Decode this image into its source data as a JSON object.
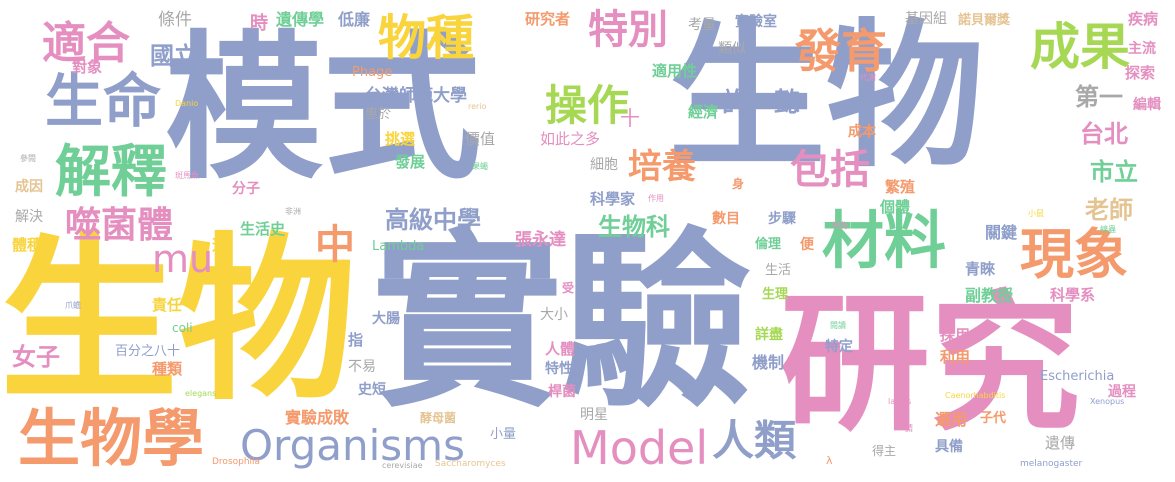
{
  "colors": {
    "blue": "#8f9fca",
    "pink": "#e48fc0",
    "yellow": "#f9d43c",
    "green": "#6fcf97",
    "orange": "#f49a6c",
    "gray": "#a8a8a8",
    "lime": "#a6d854",
    "tan": "#e5c494"
  },
  "words": [
    {
      "text": "模式",
      "color": "#8f9fca"
    },
    {
      "text": "生物",
      "color": "#8f9fca"
    },
    {
      "text": "實驗",
      "color": "#8f9fca"
    },
    {
      "text": "生物",
      "color": "#f9d43c"
    },
    {
      "text": "研究",
      "color": "#e48fc0"
    },
    {
      "text": "生物學",
      "color": "#f49a6c"
    },
    {
      "text": "生命",
      "color": "#8f9fca"
    },
    {
      "text": "解釋",
      "color": "#6fcf97"
    },
    {
      "text": "噬菌體",
      "color": "#e48fc0"
    },
    {
      "text": "適合",
      "color": "#e48fc0"
    },
    {
      "text": "材料",
      "color": "#6fcf97"
    },
    {
      "text": "現象",
      "color": "#f49a6c"
    },
    {
      "text": "成果",
      "color": "#a6d854"
    },
    {
      "text": "發育",
      "color": "#f49a6c"
    },
    {
      "text": "物種",
      "color": "#f9d43c"
    },
    {
      "text": "特別",
      "color": "#e48fc0"
    },
    {
      "text": "操作",
      "color": "#a6d854"
    },
    {
      "text": "培養",
      "color": "#f49a6c"
    },
    {
      "text": "包括",
      "color": "#e48fc0"
    },
    {
      "text": "Organisms",
      "color": "#8f9fca"
    },
    {
      "text": "Model",
      "color": "#e48fc0"
    },
    {
      "text": "人類",
      "color": "#8f9fca"
    },
    {
      "text": "mu",
      "color": "#e48fc0"
    },
    {
      "text": "中",
      "color": "#f49a6c"
    },
    {
      "text": "國立",
      "color": "#8f9fca"
    },
    {
      "text": "許一懿",
      "color": "#8f9fca"
    },
    {
      "text": "高級中學",
      "color": "#8f9fca"
    },
    {
      "text": "台北",
      "color": "#e48fc0"
    },
    {
      "text": "市立",
      "color": "#6fcf97"
    },
    {
      "text": "生物科",
      "color": "#6fcf97"
    },
    {
      "text": "老師",
      "color": "#e5c494"
    },
    {
      "text": "第一",
      "color": "#a8a8a8"
    },
    {
      "text": "台灣師範大學",
      "color": "#8f9fca"
    },
    {
      "text": "實驗成敗",
      "color": "#f49a6c"
    },
    {
      "text": "女子",
      "color": "#e48fc0"
    },
    {
      "text": "張永達",
      "color": "#e48fc0"
    },
    {
      "text": "條件",
      "color": "#a8a8a8"
    },
    {
      "text": "時",
      "color": "#e48fc0"
    },
    {
      "text": "遺傳學",
      "color": "#6fcf97"
    },
    {
      "text": "低廉",
      "color": "#8f9fca"
    },
    {
      "text": "研究者",
      "color": "#f49a6c"
    },
    {
      "text": "考量",
      "color": "#a8a8a8"
    },
    {
      "text": "實驗室",
      "color": "#8f9fca"
    },
    {
      "text": "基因組",
      "color": "#a8a8a8"
    },
    {
      "text": "諾貝爾獎",
      "color": "#e5c494"
    },
    {
      "text": "疾病",
      "color": "#e48fc0"
    },
    {
      "text": "主流",
      "color": "#e48fc0"
    },
    {
      "text": "探索",
      "color": "#e48fc0"
    },
    {
      "text": "編輯",
      "color": "#e48fc0"
    },
    {
      "text": "對象",
      "color": "#e48fc0"
    },
    {
      "text": "類似",
      "color": "#a8a8a8"
    },
    {
      "text": "適用性",
      "color": "#6fcf97"
    },
    {
      "text": "經濟",
      "color": "#6fcf97"
    },
    {
      "text": "成本",
      "color": "#f49a6c"
    },
    {
      "text": "Phage",
      "color": "#f49a6c"
    },
    {
      "text": "惠於",
      "color": "#a8a8a8"
    },
    {
      "text": "挑選",
      "color": "#f9d43c"
    },
    {
      "text": "價值",
      "color": "#a8a8a8"
    },
    {
      "text": "如此之多",
      "color": "#e48fc0"
    },
    {
      "text": "細胞",
      "color": "#a8a8a8"
    },
    {
      "text": "繁殖",
      "color": "#f49a6c"
    },
    {
      "text": "個體",
      "color": "#6fcf97"
    },
    {
      "text": "發展",
      "color": "#6fcf97"
    },
    {
      "text": "分子",
      "color": "#e48fc0"
    },
    {
      "text": "科學家",
      "color": "#8f9fca"
    },
    {
      "text": "數目",
      "color": "#f49a6c"
    },
    {
      "text": "步驟",
      "color": "#8f9fca"
    },
    {
      "text": "關鍵",
      "color": "#8f9fca"
    },
    {
      "text": "生活史",
      "color": "#6fcf97"
    },
    {
      "text": "倫理",
      "color": "#6fcf97"
    },
    {
      "text": "便",
      "color": "#f49a6c"
    },
    {
      "text": "生活",
      "color": "#a8a8a8"
    },
    {
      "text": "青睞",
      "color": "#8f9fca"
    },
    {
      "text": "副教授",
      "color": "#6fcf97"
    },
    {
      "text": "科學系",
      "color": "#e48fc0"
    },
    {
      "text": "成因",
      "color": "#e5c494"
    },
    {
      "text": "解決",
      "color": "#a8a8a8"
    },
    {
      "text": "體積",
      "color": "#f9d43c"
    },
    {
      "text": "道",
      "color": "#f9d43c"
    },
    {
      "text": "Lambda",
      "color": "#6fcf97"
    },
    {
      "text": "責任",
      "color": "#f9d43c"
    },
    {
      "text": "生理",
      "color": "#a6d854"
    },
    {
      "text": "大小",
      "color": "#a8a8a8"
    },
    {
      "text": "大腸",
      "color": "#8f9fca"
    },
    {
      "text": "詳盡",
      "color": "#a6d854"
    },
    {
      "text": "採用",
      "color": "#e48fc0"
    },
    {
      "text": "coli",
      "color": "#6fcf97"
    },
    {
      "text": "百分之八十",
      "color": "#8f9fca"
    },
    {
      "text": "指",
      "color": "#8f9fca"
    },
    {
      "text": "人體",
      "color": "#e48fc0"
    },
    {
      "text": "特定",
      "color": "#8f9fca"
    },
    {
      "text": "利用",
      "color": "#f49a6c"
    },
    {
      "text": "種類",
      "color": "#f49a6c"
    },
    {
      "text": "不易",
      "color": "#a8a8a8"
    },
    {
      "text": "特性",
      "color": "#8f9fca"
    },
    {
      "text": "機制",
      "color": "#8f9fca"
    },
    {
      "text": "Escherichia",
      "color": "#8f9fca"
    },
    {
      "text": "過程",
      "color": "#e48fc0"
    },
    {
      "text": "史短",
      "color": "#8f9fca"
    },
    {
      "text": "桿菌",
      "color": "#e48fc0"
    },
    {
      "text": "明星",
      "color": "#a8a8a8"
    },
    {
      "text": "酵母菌",
      "color": "#e5c494"
    },
    {
      "text": "選用",
      "color": "#f49a6c"
    },
    {
      "text": "子代",
      "color": "#f49a6c"
    },
    {
      "text": "小量",
      "color": "#8f9fca"
    },
    {
      "text": "遺傳",
      "color": "#a8a8a8"
    },
    {
      "text": "具備",
      "color": "#8f9fca"
    },
    {
      "text": "得主",
      "color": "#a8a8a8"
    },
    {
      "text": "elegans",
      "color": "#a6d854"
    },
    {
      "text": "Drosophila",
      "color": "#f49a6c"
    },
    {
      "text": "cerevisiae",
      "color": "#a8a8a8"
    },
    {
      "text": "Saccharomyces",
      "color": "#e5c494"
    },
    {
      "text": "melanogaster",
      "color": "#8f9fca"
    },
    {
      "text": "Caenorhabditis",
      "color": "#f9d43c"
    },
    {
      "text": "Xenopus",
      "color": "#8f9fca"
    },
    {
      "text": "laevis",
      "color": "#e48fc0"
    },
    {
      "text": "Danio",
      "color": "#f9d43c"
    },
    {
      "text": "rerio",
      "color": "#e5c494"
    },
    {
      "text": "代謝",
      "color": "#e48fc0"
    },
    {
      "text": "參閱",
      "color": "#a8a8a8"
    },
    {
      "text": "斑馬魚",
      "color": "#e48fc0"
    },
    {
      "text": "非洲",
      "color": "#a8a8a8"
    },
    {
      "text": "爪蟾",
      "color": "#8f9fca"
    },
    {
      "text": "果蠅",
      "color": "#6fcf97"
    },
    {
      "text": "作用",
      "color": "#e48fc0"
    },
    {
      "text": "視為",
      "color": "#e48fc0"
    },
    {
      "text": "小鼠",
      "color": "#f9d43c"
    },
    {
      "text": "線蟲",
      "color": "#6fcf97"
    },
    {
      "text": "閱讀",
      "color": "#6fcf97"
    },
    {
      "text": "請",
      "color": "#e48fc0"
    },
    {
      "text": "身",
      "color": "#f49a6c"
    },
    {
      "text": "受",
      "color": "#e48fc0"
    },
    {
      "text": "λ",
      "color": "#f49a6c"
    },
    {
      "text": "十",
      "color": "#e48fc0"
    }
  ]
}
